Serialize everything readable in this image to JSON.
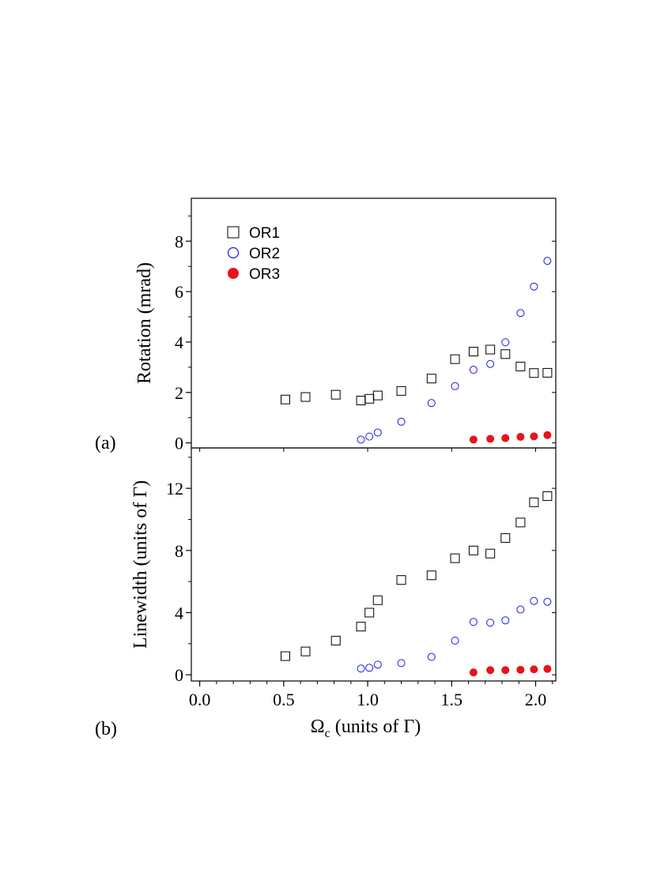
{
  "chart_data": [
    {
      "type": "scatter",
      "panel_label": "(a)",
      "ylabel": "Rotation (mrad)",
      "xlim": [
        -0.05,
        2.12
      ],
      "ylim": [
        -0.2,
        9.7
      ],
      "y_ticks": [
        0,
        2,
        4,
        6,
        8
      ],
      "y_tick_labels": [
        "0",
        "2",
        "4",
        "6",
        "8"
      ],
      "legend_position": "top-left",
      "series": [
        {
          "name": "OR1",
          "marker": "open-square",
          "color": "#000000",
          "x": [
            0.51,
            0.63,
            0.81,
            0.96,
            1.01,
            1.06,
            1.2,
            1.38,
            1.52,
            1.63,
            1.73,
            1.82,
            1.91,
            1.99,
            2.07
          ],
          "y": [
            1.72,
            1.82,
            1.91,
            1.68,
            1.75,
            1.88,
            2.06,
            2.55,
            3.32,
            3.62,
            3.7,
            3.52,
            3.03,
            2.77,
            2.78
          ]
        },
        {
          "name": "OR2",
          "marker": "open-circle",
          "color": "#1a1ae6",
          "x": [
            0.96,
            1.01,
            1.06,
            1.2,
            1.38,
            1.52,
            1.63,
            1.73,
            1.82,
            1.91,
            1.99,
            2.07
          ],
          "y": [
            0.13,
            0.25,
            0.41,
            0.84,
            1.58,
            2.25,
            2.9,
            3.13,
            3.99,
            5.15,
            6.2,
            7.22
          ]
        },
        {
          "name": "OR3",
          "marker": "filled-circle",
          "color": "#e8131b",
          "x": [
            1.63,
            1.73,
            1.82,
            1.91,
            1.99,
            2.07
          ],
          "y": [
            0.13,
            0.16,
            0.19,
            0.24,
            0.26,
            0.31
          ]
        }
      ]
    },
    {
      "type": "scatter",
      "panel_label": "(b)",
      "ylabel": "Linewidth (units of Γ)",
      "xlabel": "Ωc (units of Γ)",
      "xlabel_main": "Ω",
      "xlabel_sub": "c",
      "xlabel_rest": " (units of Γ)",
      "xlim": [
        -0.05,
        2.12
      ],
      "ylim": [
        -0.4,
        14.6
      ],
      "x_ticks": [
        0.0,
        0.5,
        1.0,
        1.5,
        2.0
      ],
      "x_tick_labels": [
        "0.0",
        "0.5",
        "1.0",
        "1.5",
        "2.0"
      ],
      "y_ticks": [
        0,
        4,
        8,
        12
      ],
      "y_tick_labels": [
        "0",
        "4",
        "8",
        "12"
      ],
      "series": [
        {
          "name": "OR1",
          "marker": "open-square",
          "color": "#000000",
          "x": [
            0.51,
            0.63,
            0.81,
            0.96,
            1.01,
            1.06,
            1.2,
            1.38,
            1.52,
            1.63,
            1.73,
            1.82,
            1.91,
            1.99,
            2.07
          ],
          "y": [
            1.2,
            1.5,
            2.2,
            3.1,
            4.0,
            4.8,
            6.1,
            6.4,
            7.5,
            8.0,
            7.8,
            8.8,
            9.8,
            11.1,
            11.5
          ]
        },
        {
          "name": "OR2",
          "marker": "open-circle",
          "color": "#1a1ae6",
          "x": [
            0.96,
            1.01,
            1.06,
            1.2,
            1.38,
            1.52,
            1.63,
            1.73,
            1.82,
            1.91,
            1.99,
            2.07
          ],
          "y": [
            0.4,
            0.45,
            0.65,
            0.75,
            1.15,
            2.2,
            3.4,
            3.35,
            3.5,
            4.2,
            4.75,
            4.7
          ]
        },
        {
          "name": "OR3",
          "marker": "filled-circle",
          "color": "#e8131b",
          "x": [
            1.63,
            1.73,
            1.82,
            1.91,
            1.99,
            2.07
          ],
          "y": [
            0.15,
            0.3,
            0.3,
            0.32,
            0.35,
            0.38
          ]
        }
      ]
    }
  ]
}
